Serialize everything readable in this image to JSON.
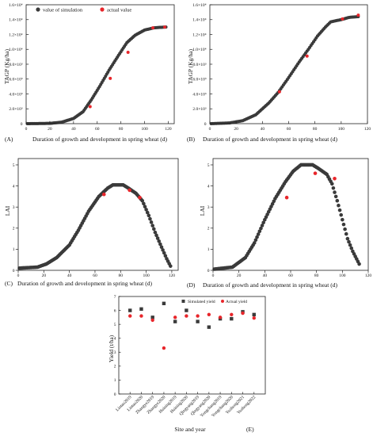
{
  "colors": {
    "simulated": "#3a3a3a",
    "actual": "#e8262b",
    "axis": "#222222"
  },
  "chart_data": [
    {
      "type": "scatter",
      "panel": "(A)",
      "xlabel": "Duration of growth and development in spring wheat (d)",
      "ylabel": "TAGP (Kg/ha)",
      "xlim": [
        0,
        125
      ],
      "ylim": [
        0,
        16000
      ],
      "x_ticks": [
        "0",
        "20",
        "40",
        "60",
        "80",
        "100",
        "120"
      ],
      "x_tick_values": [
        0,
        20,
        40,
        60,
        80,
        100,
        120
      ],
      "y_ticks": [
        "0",
        "2.0×10³",
        "4.0×10³",
        "6.0×10³",
        "8.0×10³",
        "1.0×10⁴",
        "1.2×10⁴",
        "1.4×10⁴",
        "1.6×10⁴"
      ],
      "y_tick_values": [
        0,
        2000,
        4000,
        6000,
        8000,
        10000,
        12000,
        14000,
        16000
      ],
      "legend": {
        "simulated": "value of simulation",
        "actual": "actual value",
        "position": "top-left"
      },
      "series": [
        {
          "name": "value of simulation",
          "x_start": 1,
          "x_end": 118,
          "curve": [
            [
              0,
              0
            ],
            [
              20,
              40
            ],
            [
              30,
              200
            ],
            [
              40,
              700
            ],
            [
              48,
              1600
            ],
            [
              55,
              3200
            ],
            [
              62,
              5000
            ],
            [
              70,
              7200
            ],
            [
              78,
              9200
            ],
            [
              85,
              10900
            ],
            [
              92,
              11900
            ],
            [
              100,
              12600
            ],
            [
              108,
              12900
            ],
            [
              112,
              12950
            ],
            [
              118,
              13000
            ]
          ]
        },
        {
          "name": "actual value",
          "x": [
            54,
            71,
            86,
            107,
            117
          ],
          "y": [
            2300,
            6100,
            9600,
            12900,
            13000
          ]
        }
      ]
    },
    {
      "type": "scatter",
      "panel": "(B)",
      "xlabel": "Duration of growth and development in spring wheat (d)",
      "ylabel": "TAGP (Kg/ha)",
      "xlim": [
        0,
        120
      ],
      "ylim": [
        0,
        16000
      ],
      "x_ticks": [
        "0",
        "20",
        "40",
        "60",
        "80",
        "100",
        "120"
      ],
      "x_tick_values": [
        0,
        20,
        40,
        60,
        80,
        100,
        120
      ],
      "y_ticks": [
        "0",
        "2.0×10³",
        "4.0×10³",
        "6.0×10³",
        "8.0×10³",
        "1.0×10⁴",
        "1.2×10⁴",
        "1.4×10⁴",
        "1.6×10⁴"
      ],
      "y_tick_values": [
        0,
        2000,
        4000,
        6000,
        8000,
        10000,
        12000,
        14000,
        16000
      ],
      "series": [
        {
          "name": "value of simulation",
          "x_start": 1,
          "x_end": 113,
          "curve": [
            [
              0,
              0
            ],
            [
              15,
              100
            ],
            [
              25,
              400
            ],
            [
              35,
              1200
            ],
            [
              45,
              2800
            ],
            [
              52,
              4200
            ],
            [
              60,
              6200
            ],
            [
              68,
              8300
            ],
            [
              75,
              10000
            ],
            [
              82,
              11800
            ],
            [
              88,
              13000
            ],
            [
              92,
              13700
            ],
            [
              100,
              14000
            ],
            [
              106,
              14300
            ],
            [
              113,
              14400
            ]
          ]
        },
        {
          "name": "actual value",
          "x": [
            53,
            74,
            101,
            113
          ],
          "y": [
            4300,
            9100,
            14100,
            14600
          ]
        }
      ]
    },
    {
      "type": "scatter",
      "panel": "(C)",
      "xlabel": "Duration of growth and development in spring wheat (d)",
      "ylabel": "LAI",
      "xlim": [
        0,
        125
      ],
      "ylim": [
        0,
        5.3
      ],
      "x_ticks": [
        "0",
        "20",
        "40",
        "60",
        "80",
        "100",
        "120"
      ],
      "x_tick_values": [
        0,
        20,
        40,
        60,
        80,
        100,
        120
      ],
      "y_ticks": [
        "0",
        "1",
        "2",
        "3",
        "4",
        "5"
      ],
      "y_tick_values": [
        0,
        1,
        2,
        3,
        4,
        5
      ],
      "series": [
        {
          "name": "value of simulation",
          "x_start": 1,
          "x_end": 119,
          "curve": [
            [
              0,
              0.1
            ],
            [
              15,
              0.15
            ],
            [
              22,
              0.3
            ],
            [
              30,
              0.6
            ],
            [
              40,
              1.2
            ],
            [
              47,
              1.9
            ],
            [
              55,
              2.8
            ],
            [
              63,
              3.5
            ],
            [
              70,
              3.9
            ],
            [
              74,
              4.05
            ],
            [
              82,
              4.05
            ],
            [
              86,
              3.9
            ],
            [
              92,
              3.65
            ],
            [
              97,
              3.3
            ],
            [
              102,
              2.6
            ],
            [
              107,
              1.8
            ],
            [
              112,
              1.1
            ],
            [
              116,
              0.55
            ],
            [
              119,
              0.2
            ]
          ]
        },
        {
          "name": "actual value",
          "x": [
            67,
            87,
            95
          ],
          "y": [
            3.6,
            3.8,
            3.45
          ]
        }
      ]
    },
    {
      "type": "scatter",
      "panel": "(D)",
      "xlabel": "Duration of growth and development in spring wheat (d)",
      "ylabel": "LAI",
      "xlim": [
        0,
        120
      ],
      "ylim": [
        0,
        5.3
      ],
      "x_ticks": [
        "0",
        "20",
        "40",
        "60",
        "80",
        "100",
        "120"
      ],
      "x_tick_values": [
        0,
        20,
        40,
        60,
        80,
        100,
        120
      ],
      "y_ticks": [
        "0",
        "1",
        "2",
        "3",
        "4",
        "5"
      ],
      "y_tick_values": [
        0,
        1,
        2,
        3,
        4,
        5
      ],
      "series": [
        {
          "name": "value of simulation",
          "x_start": 1,
          "x_end": 113,
          "curve": [
            [
              0,
              0.05
            ],
            [
              15,
              0.15
            ],
            [
              25,
              0.6
            ],
            [
              32,
              1.3
            ],
            [
              40,
              2.4
            ],
            [
              48,
              3.4
            ],
            [
              56,
              4.2
            ],
            [
              62,
              4.7
            ],
            [
              68,
              5.0
            ],
            [
              77,
              5.0
            ],
            [
              81,
              4.85
            ],
            [
              88,
              4.55
            ],
            [
              92,
              4.1
            ],
            [
              96,
              3.3
            ],
            [
              100,
              2.4
            ],
            [
              104,
              1.5
            ],
            [
              108,
              0.9
            ],
            [
              113,
              0.3
            ]
          ]
        },
        {
          "name": "actual value",
          "x": [
            57,
            79,
            94
          ],
          "y": [
            3.45,
            4.6,
            4.35
          ]
        }
      ]
    },
    {
      "type": "scatter",
      "panel": "(E)",
      "xlabel": "Site and year",
      "ylabel": "Yield (t/ha)",
      "ylim": [
        0,
        7
      ],
      "y_ticks": [
        "0",
        "1",
        "2",
        "3",
        "4",
        "5",
        "6",
        "7"
      ],
      "y_tick_values": [
        0,
        1,
        2,
        3,
        4,
        5,
        6,
        7
      ],
      "categories": [
        "Lintao2019",
        "Lintao2020",
        "Zhangye2019",
        "Zhangye2020",
        "Huining2019",
        "Huining2020",
        "Qingyang2019",
        "Qingyang2020",
        "Yongchang2019",
        "Yongchang2020",
        "Yuzhong2021",
        "Yuzhong2022"
      ],
      "legend": {
        "simulated": "Simulated yield",
        "actual": "Actual yield",
        "position": "top-right"
      },
      "series": [
        {
          "name": "Simulated yield",
          "values": [
            6.0,
            6.1,
            5.5,
            6.5,
            5.2,
            6.0,
            5.2,
            4.8,
            5.4,
            5.4,
            5.9,
            5.7
          ]
        },
        {
          "name": "Actual yield",
          "values": [
            5.6,
            5.6,
            5.3,
            3.3,
            5.5,
            5.6,
            5.6,
            5.7,
            5.5,
            5.7,
            5.8,
            5.45
          ]
        }
      ]
    }
  ]
}
